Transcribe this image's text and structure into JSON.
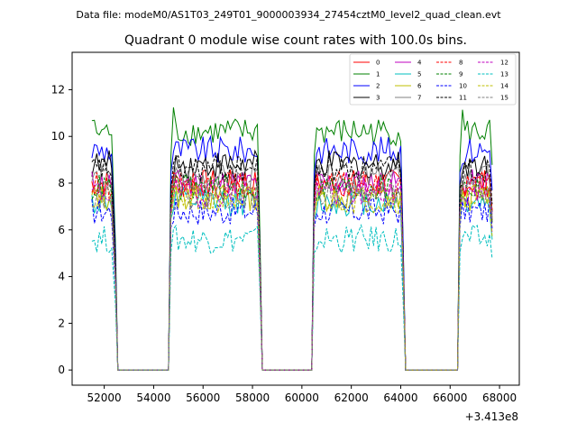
{
  "chart_data": {
    "type": "line",
    "suptitle": "Data file: modeM0/AS1T03_249T01_9000003934_27454cztM0_level2_quad_clean.evt",
    "title": "Quadrant 0 module wise count rates with 100.0s bins.",
    "xlabel": "",
    "ylabel": "",
    "x_offset_label": "+3.413e8",
    "xlim": [
      50700,
      68800
    ],
    "ylim": [
      -0.65,
      13.6
    ],
    "x_ticks": [
      52000,
      54000,
      56000,
      58000,
      60000,
      62000,
      64000,
      66000,
      68000
    ],
    "x_tick_labels": [
      "52000",
      "54000",
      "56000",
      "58000",
      "60000",
      "62000",
      "64000",
      "66000",
      "68000"
    ],
    "y_ticks": [
      0,
      2,
      4,
      6,
      8,
      10,
      12
    ],
    "y_tick_labels": [
      "0",
      "2",
      "4",
      "6",
      "8",
      "10",
      "12"
    ],
    "grid": false,
    "legend_position": "top-right",
    "segments": [
      [
        51500,
        52450
      ],
      [
        54700,
        58300
      ],
      [
        60500,
        64100
      ],
      [
        66400,
        67700
      ]
    ],
    "gaps": [
      [
        52450,
        54700
      ],
      [
        58300,
        60500
      ],
      [
        64100,
        66400
      ]
    ],
    "bin_width": 100,
    "series": [
      {
        "name": "0",
        "color": "#ff0000",
        "dashed": false,
        "level": 8.0
      },
      {
        "name": "1",
        "color": "#008000",
        "dashed": false,
        "level": 10.2
      },
      {
        "name": "2",
        "color": "#0000ff",
        "dashed": false,
        "level": 9.4
      },
      {
        "name": "3",
        "color": "#000000",
        "dashed": false,
        "level": 8.8
      },
      {
        "name": "4",
        "color": "#bf00bf",
        "dashed": false,
        "level": 8.0
      },
      {
        "name": "5",
        "color": "#00bfbf",
        "dashed": false,
        "level": 7.2
      },
      {
        "name": "6",
        "color": "#bfbf00",
        "dashed": false,
        "level": 7.4
      },
      {
        "name": "7",
        "color": "#808080",
        "dashed": false,
        "level": 8.2
      },
      {
        "name": "8",
        "color": "#ff0000",
        "dashed": true,
        "level": 7.9
      },
      {
        "name": "9",
        "color": "#008000",
        "dashed": true,
        "level": 7.8
      },
      {
        "name": "10",
        "color": "#0000ff",
        "dashed": true,
        "level": 6.8
      },
      {
        "name": "11",
        "color": "#000000",
        "dashed": true,
        "level": 8.6
      },
      {
        "name": "12",
        "color": "#bf00bf",
        "dashed": true,
        "level": 7.6
      },
      {
        "name": "13",
        "color": "#00bfbf",
        "dashed": true,
        "level": 5.6
      },
      {
        "name": "14",
        "color": "#bfbf00",
        "dashed": true,
        "level": 7.3
      },
      {
        "name": "15",
        "color": "#808080",
        "dashed": true,
        "level": 7.5
      }
    ]
  }
}
